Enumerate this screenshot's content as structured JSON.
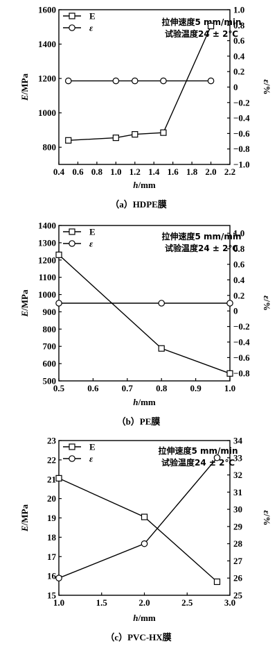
{
  "chart_data": [
    {
      "type": "line",
      "caption": "（a）HDPE膜",
      "xlabel": "h/mm",
      "ylabel": "E/MPa",
      "y2label": "ε/%",
      "xlim": [
        0.4,
        2.2
      ],
      "ylim": [
        700,
        1600
      ],
      "y2lim": [
        -1.0,
        1.0
      ],
      "xticks": [
        "0.4",
        "0.6",
        "0.8",
        "1.0",
        "1.2",
        "1.4",
        "1.6",
        "1.8",
        "2.0",
        "2.2"
      ],
      "yticks": [
        "800",
        "1000",
        "1200",
        "1400",
        "1600"
      ],
      "y2ticks": [
        "−1.0",
        "−0.8",
        "−0.6",
        "−0.4",
        "−0.2",
        "0",
        "0.2",
        "0.4",
        "0.6",
        "0.8",
        "1.0"
      ],
      "annotation": [
        "拉伸速度5 mm/min",
        "试验温度24 ± 2℃"
      ],
      "series": [
        {
          "name": "E",
          "marker": "square",
          "axis": "left",
          "x": [
            0.5,
            1.0,
            1.2,
            1.5,
            2.0
          ],
          "y": [
            840,
            855,
            875,
            885,
            1505
          ]
        },
        {
          "name": "ε",
          "marker": "circle",
          "axis": "right",
          "x": [
            0.5,
            1.0,
            1.2,
            1.5,
            2.0
          ],
          "y": [
            0.08,
            0.08,
            0.08,
            0.08,
            0.08
          ]
        }
      ]
    },
    {
      "type": "line",
      "caption": "（b）PE膜",
      "xlabel": "h/mm",
      "ylabel": "E/MPa",
      "y2label": "ε/%",
      "xlim": [
        0.5,
        1.0
      ],
      "ylim": [
        500,
        1400
      ],
      "y2lim": [
        -0.9,
        1.1
      ],
      "xticks": [
        "0.5",
        "0.6",
        "0.7",
        "0.8",
        "0.9",
        "1.0"
      ],
      "yticks": [
        "500",
        "600",
        "700",
        "800",
        "900",
        "1000",
        "1100",
        "1200",
        "1300",
        "1400"
      ],
      "y2ticks": [
        "−0.8",
        "−0.6",
        "−0.4",
        "−0.2",
        "0",
        "0.2",
        "0.4",
        "0.6",
        "0.8",
        "1.0"
      ],
      "annotation": [
        "拉伸速度5 mm/min",
        "试验温度24 ± 2℃"
      ],
      "series": [
        {
          "name": "E",
          "marker": "square",
          "axis": "left",
          "x": [
            0.5,
            0.8,
            1.0
          ],
          "y": [
            1230,
            688,
            543
          ]
        },
        {
          "name": "ε",
          "marker": "circle",
          "axis": "right",
          "x": [
            0.5,
            0.8,
            1.0
          ],
          "y": [
            0.1,
            0.1,
            0.1
          ]
        }
      ]
    },
    {
      "type": "line",
      "caption": "（c）PVC-HX膜",
      "xlabel": "h/mm",
      "ylabel": "E/MPa",
      "y2label": "ε/%",
      "xlim": [
        1.0,
        3.0
      ],
      "ylim": [
        15,
        23
      ],
      "y2lim": [
        25,
        34
      ],
      "xticks": [
        "1.0",
        "1.5",
        "2.0",
        "2.5",
        "3.0"
      ],
      "yticks": [
        "15",
        "16",
        "17",
        "18",
        "19",
        "20",
        "21",
        "22",
        "23"
      ],
      "y2ticks": [
        "25",
        "26",
        "27",
        "28",
        "29",
        "30",
        "31",
        "32",
        "33",
        "34"
      ],
      "annotation": [
        "拉伸速度5 mm/min",
        "试验温度24 ± 2℃"
      ],
      "series": [
        {
          "name": "E",
          "marker": "square",
          "axis": "left",
          "x": [
            1.0,
            2.0,
            2.85
          ],
          "y": [
            21.05,
            19.05,
            15.7
          ]
        },
        {
          "name": "ε",
          "marker": "circle",
          "axis": "right",
          "x": [
            1.0,
            2.0,
            2.85
          ],
          "y": [
            26.0,
            28.0,
            33.0
          ]
        }
      ]
    }
  ]
}
